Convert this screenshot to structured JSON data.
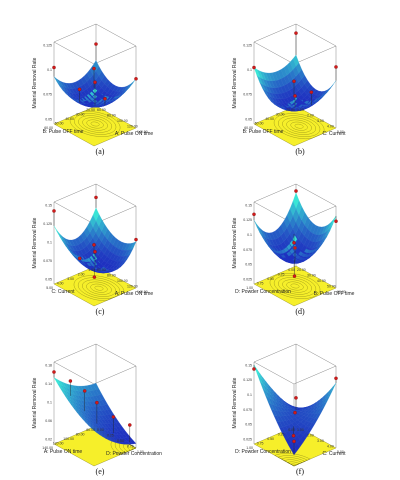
{
  "colors": {
    "surface_low": "#1e2fc0",
    "surface_high": "#39e6d6",
    "contour_floor": "#f6ef2a",
    "contour_line": "#6f6a10",
    "design_point": "#d21a1a",
    "frame": "#555555"
  },
  "chart_data": [
    {
      "type": "surface3d",
      "panel_label": "(a)",
      "zlabel": "Material Removal Rate",
      "xlabel": "A: Pulse ON time",
      "ylabel": "B: Pulse OFF time",
      "z_ticks": [
        "0.05",
        "0.075",
        "0.1",
        "0.125"
      ],
      "x_ticks": [
        "60.00",
        "80.00",
        "100.00",
        "120.00",
        "140.00"
      ],
      "y_ticks": [
        "20.00",
        "30.00",
        "40.00",
        "50.00",
        "60.00"
      ],
      "zlim": [
        0.05,
        0.14
      ],
      "surface": {
        "base": 0.072,
        "a": 0.004,
        "b": 0.003,
        "aa": 0.018,
        "bb": 0.015,
        "ab": 0.002
      },
      "design_points": [
        {
          "x": -1,
          "y": -1,
          "z": 0.118
        },
        {
          "x": 1,
          "y": -1,
          "z": 0.104
        },
        {
          "x": -1,
          "y": 1,
          "z": 0.112
        },
        {
          "x": 1,
          "y": 1,
          "z": 0.135
        },
        {
          "x": 0,
          "y": 0,
          "z": 0.098
        },
        {
          "x": -0.3,
          "y": 0.45,
          "z": 0.091
        },
        {
          "x": 0.55,
          "y": 0.05,
          "z": 0.087
        }
      ]
    },
    {
      "type": "surface3d",
      "panel_label": "(b)",
      "zlabel": "Material Removal Rate",
      "xlabel": "C: Current",
      "ylabel": "B: Pulse OFF time",
      "z_ticks": [
        "0.05",
        "0.075",
        "0.1",
        "0.125"
      ],
      "x_ticks": [
        "1.00",
        "2.00",
        "3.00",
        "4.00",
        "5.00"
      ],
      "y_ticks": [
        "20.00",
        "30.00",
        "40.00",
        "50.00",
        "60.00"
      ],
      "zlim": [
        0.05,
        0.14
      ],
      "surface": {
        "base": 0.07,
        "a": -0.003,
        "b": 0.002,
        "aa": 0.024,
        "bb": 0.012,
        "ab": -0.001
      },
      "design_points": [
        {
          "x": -1,
          "y": -1,
          "z": 0.13
        },
        {
          "x": 1,
          "y": -1,
          "z": 0.117
        },
        {
          "x": -1,
          "y": 1,
          "z": 0.112
        },
        {
          "x": 1,
          "y": 1,
          "z": 0.121
        },
        {
          "x": 0,
          "y": 0,
          "z": 0.083
        },
        {
          "x": 0.4,
          "y": -0.4,
          "z": 0.088
        }
      ]
    },
    {
      "type": "surface3d",
      "panel_label": "(c)",
      "zlabel": "Material Removal Rate",
      "xlabel": "A: Pulse ON time",
      "ylabel": "C: Current",
      "z_ticks": [
        "0.05",
        "0.075",
        "0.1",
        "0.125",
        "0.15"
      ],
      "x_ticks": [
        "60.00",
        "80.00",
        "100.00",
        "120.00",
        "140.00"
      ],
      "y_ticks": [
        "1.00",
        "2.00",
        "3.00",
        "4.00",
        "5.00"
      ],
      "zlim": [
        0.05,
        0.16
      ],
      "surface": {
        "base": 0.074,
        "a": -0.006,
        "b": 0.002,
        "aa": 0.018,
        "bb": 0.03,
        "ab": 0.002
      },
      "design_points": [
        {
          "x": -1,
          "y": -1,
          "z": 0.142
        },
        {
          "x": 1,
          "y": -1,
          "z": 0.115
        },
        {
          "x": -1,
          "y": 1,
          "z": 0.148
        },
        {
          "x": 1,
          "y": 1,
          "z": 0.132
        },
        {
          "x": 0,
          "y": 0,
          "z": 0.096
        },
        {
          "x": -0.45,
          "y": 0.3,
          "z": 0.084
        },
        {
          "x": 0.6,
          "y": 0.6,
          "z": 0.078
        }
      ]
    },
    {
      "type": "surface3d",
      "panel_label": "(d)",
      "zlabel": "Material Removal Rate",
      "xlabel": "B: Pulse OFF time",
      "ylabel": "D: Powder Concentration",
      "z_ticks": [
        "0.025",
        "0.05",
        "0.075",
        "0.1",
        "0.125",
        "0.15"
      ],
      "x_ticks": [
        "20.00",
        "30.00",
        "40.00",
        "50.00",
        "60.00"
      ],
      "y_ticks": [
        "0.00",
        "0.25",
        "0.50",
        "0.75",
        "1.00"
      ],
      "zlim": [
        0.02,
        0.16
      ],
      "surface": {
        "base": 0.062,
        "a": 0.003,
        "b": -0.004,
        "aa": 0.036,
        "bb": 0.042,
        "ab": 0.004
      },
      "design_points": [
        {
          "x": -1,
          "y": -1,
          "z": 0.148
        },
        {
          "x": 1,
          "y": -1,
          "z": 0.134
        },
        {
          "x": -1,
          "y": 1,
          "z": 0.139
        },
        {
          "x": 1,
          "y": 1,
          "z": 0.128
        },
        {
          "x": 0,
          "y": 0,
          "z": 0.085
        },
        {
          "x": 0.5,
          "y": 0.5,
          "z": 0.054
        }
      ]
    },
    {
      "type": "surface3d",
      "panel_label": "(e)",
      "zlabel": "Material Removal Rate",
      "xlabel": "D: Powder Concentration",
      "ylabel": "A: Pulse ON time",
      "z_ticks": [
        "0.02",
        "0.06",
        "0.1",
        "0.14",
        "0.18"
      ],
      "x_ticks": [
        "0.00",
        "0.25",
        "0.50",
        "0.75",
        "1.00"
      ],
      "y_ticks": [
        "60.00",
        "80.00",
        "100.00",
        "120.00",
        "140.00"
      ],
      "zlim": [
        0.02,
        0.2
      ],
      "surface": {
        "base": 0.08,
        "a": -0.038,
        "b": 0.03,
        "aa": 0.01,
        "bb": 0.012,
        "ab": 0.004
      },
      "design_points": [
        {
          "x": -1,
          "y": 1,
          "z": 0.178
        },
        {
          "x": -0.6,
          "y": 0.6,
          "z": 0.16
        },
        {
          "x": -0.2,
          "y": 0.3,
          "z": 0.142
        },
        {
          "x": 0.2,
          "y": 0.1,
          "z": 0.122
        },
        {
          "x": 0.5,
          "y": -0.4,
          "z": 0.088
        },
        {
          "x": 0.9,
          "y": -0.8,
          "z": 0.072
        }
      ]
    },
    {
      "type": "surface3d",
      "panel_label": "(f)",
      "zlabel": "Material Removal Rate",
      "xlabel": "C: Current",
      "ylabel": "D: Powder Concentration",
      "z_ticks": [
        "0.025",
        "0.05",
        "0.075",
        "0.1",
        "0.125",
        "0.15"
      ],
      "x_ticks": [
        "1.00",
        "2.00",
        "3.00",
        "4.00",
        "5.00"
      ],
      "y_ticks": [
        "0.00",
        "0.25",
        "0.50",
        "0.75",
        "1.00"
      ],
      "zlim": [
        0.02,
        0.16
      ],
      "surface": {
        "base": 0.075,
        "a": -0.008,
        "b": 0.004,
        "aa": 0.01,
        "bb": 0.008,
        "ab": -0.05
      },
      "design_points": [
        {
          "x": -1,
          "y": 1,
          "z": 0.148
        },
        {
          "x": 1,
          "y": -1,
          "z": 0.139
        },
        {
          "x": -1,
          "y": -1,
          "z": 0.068
        },
        {
          "x": 1,
          "y": 1,
          "z": 0.062
        },
        {
          "x": 0,
          "y": 0,
          "z": 0.077
        },
        {
          "x": 0.4,
          "y": 0.45,
          "z": 0.052
        }
      ]
    }
  ]
}
